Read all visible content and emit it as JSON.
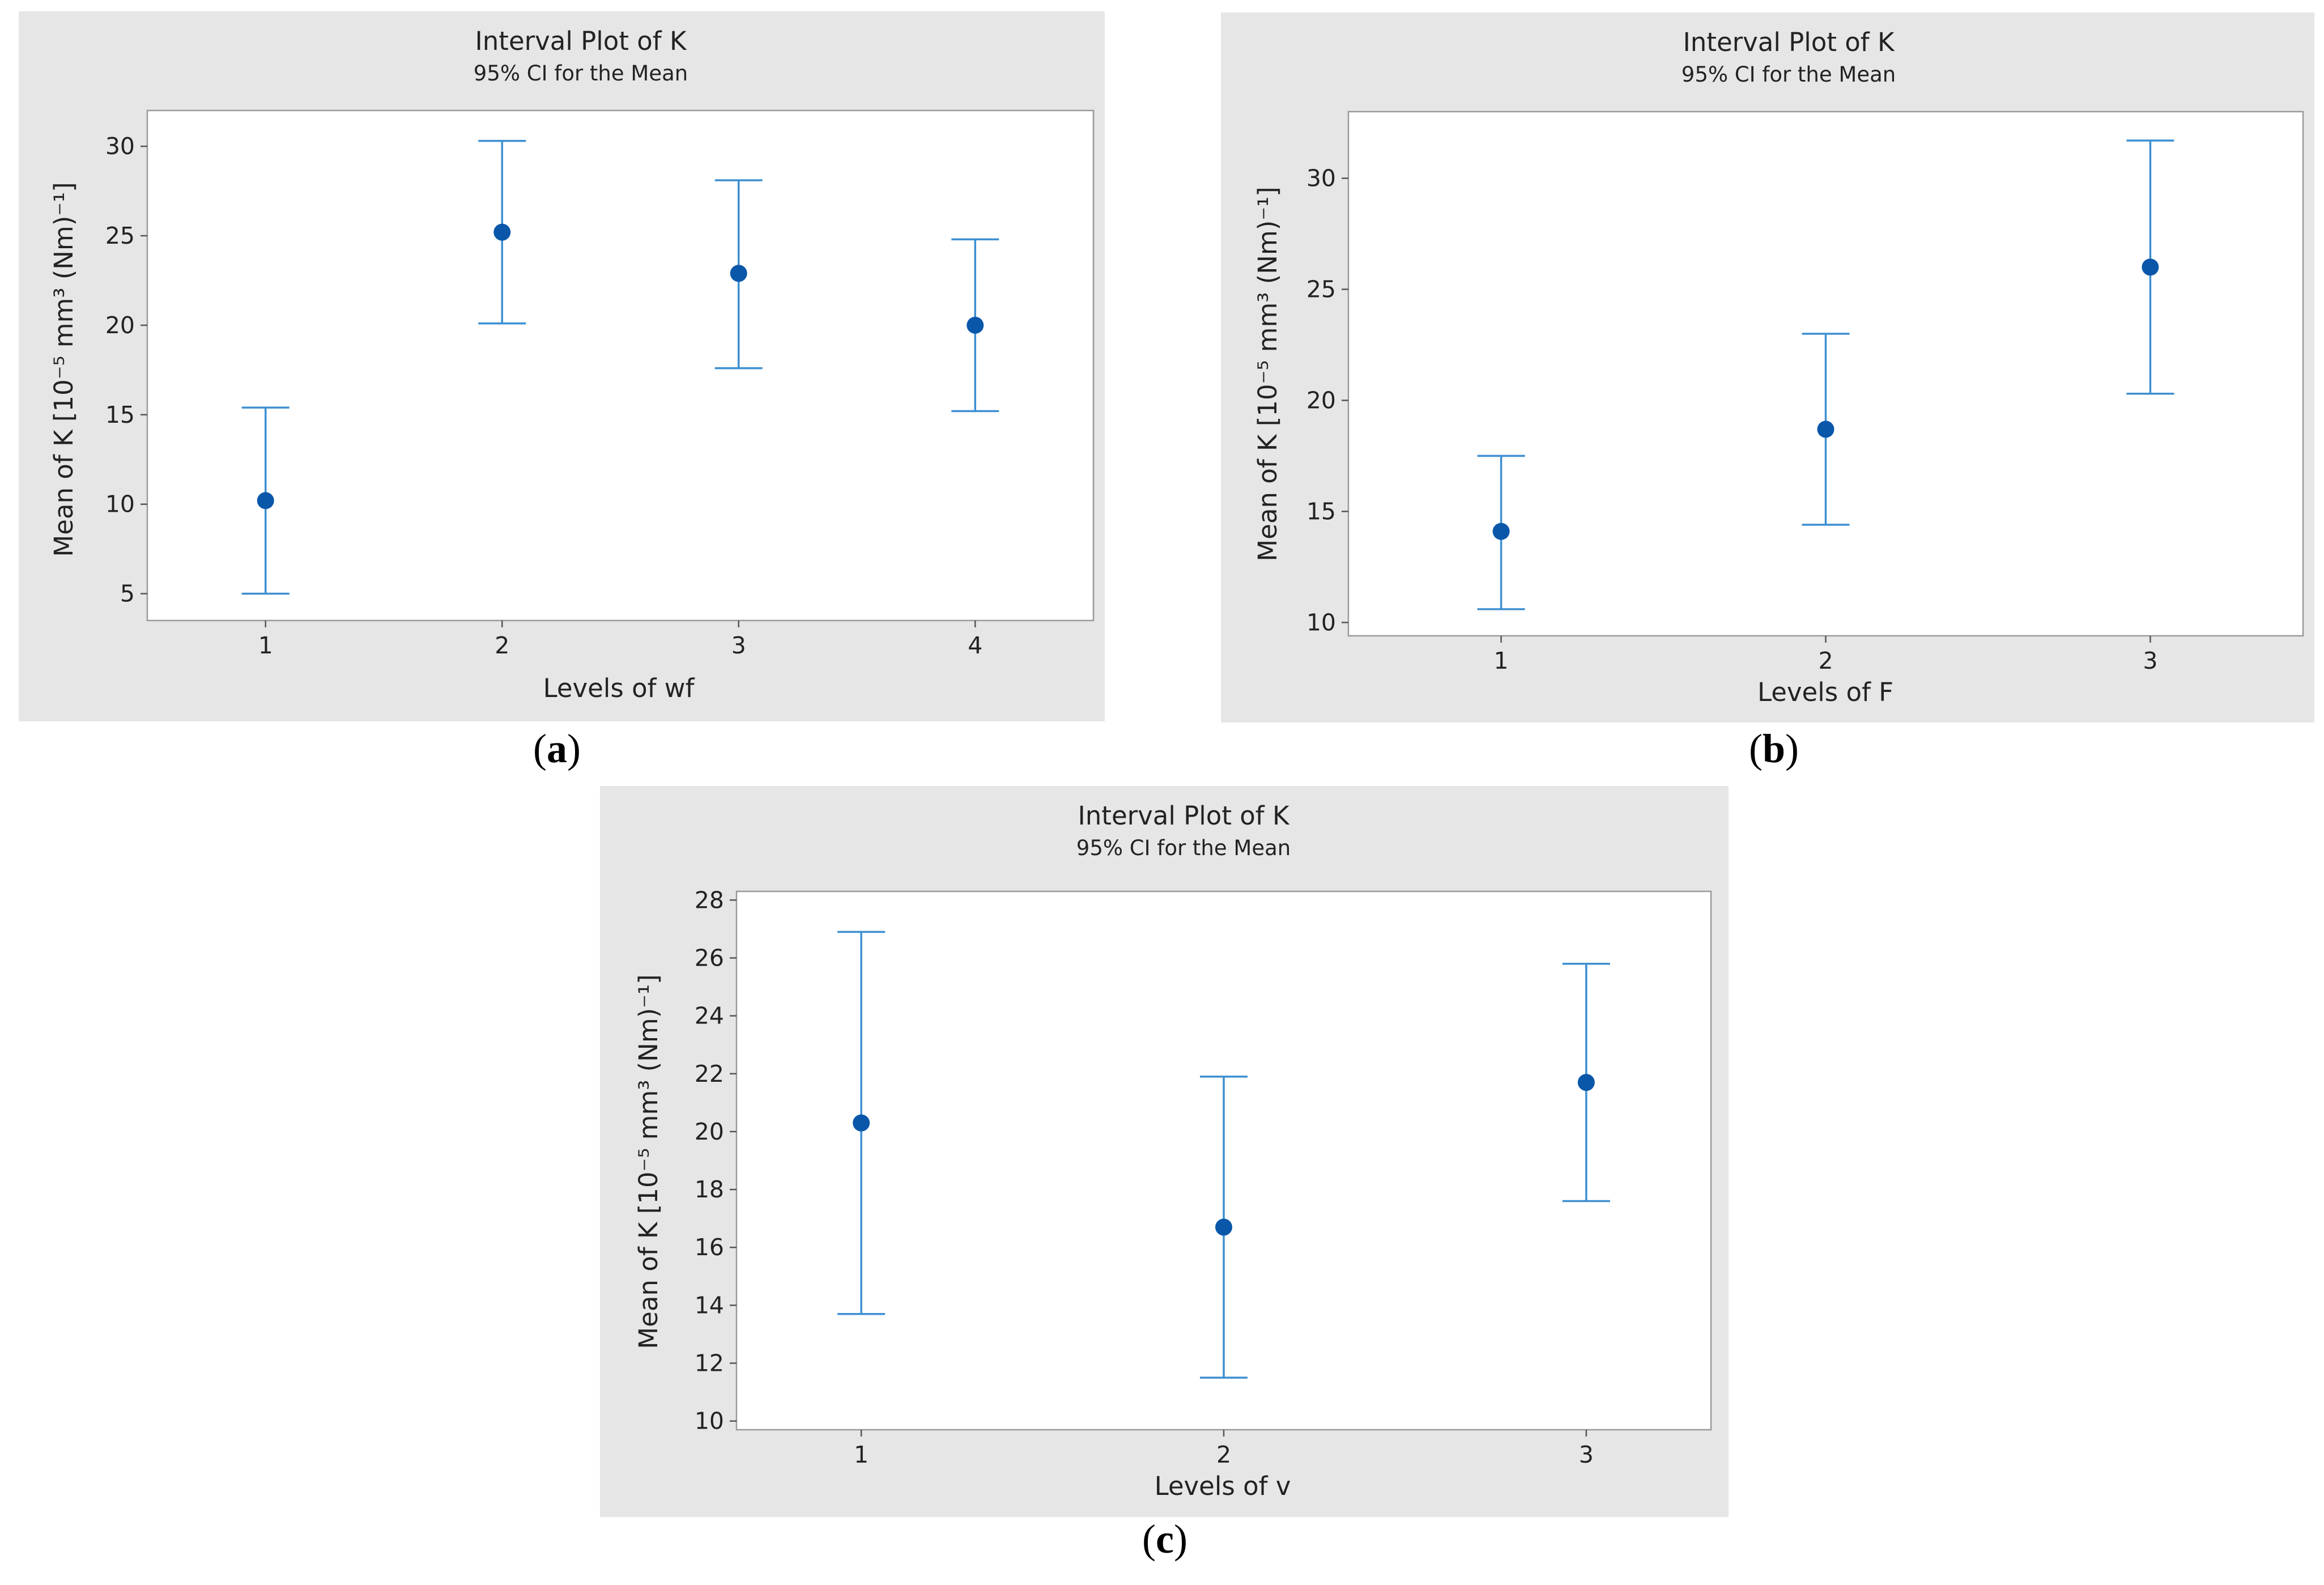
{
  "colors": {
    "background": "#e6e6e6",
    "plot_bg": "#ffffff",
    "interval": "#3d8fd1",
    "mean_point": "#0a57aa",
    "frame": "#9a9a9a"
  },
  "chart_data": [
    {
      "type": "interval",
      "panel": "(a)",
      "panel_letter": "a",
      "title": "Interval Plot of K",
      "subtitle": "95% CI for the Mean",
      "xlabel": "Levels of wf",
      "ylabel": "Mean of K [10⁻⁵ mm³ (Nm)⁻¹]",
      "categories": [
        "1",
        "2",
        "3",
        "4"
      ],
      "means": [
        10.2,
        25.2,
        22.9,
        20.0
      ],
      "lower": [
        5.0,
        20.1,
        17.6,
        15.2
      ],
      "upper": [
        15.4,
        30.3,
        28.1,
        24.8
      ],
      "ylim": [
        3.5,
        32.0
      ],
      "yticks": [
        5,
        10,
        15,
        20,
        25,
        30
      ],
      "ytick_labels": [
        "5",
        "10",
        "15",
        "20",
        "25",
        "30"
      ]
    },
    {
      "type": "interval",
      "panel": "(b)",
      "panel_letter": "b",
      "title": "Interval Plot of K",
      "subtitle": "95% CI for the Mean",
      "xlabel": "Levels of F",
      "ylabel": "Mean of K [10⁻⁵ mm³ (Nm)⁻¹]",
      "categories": [
        "1",
        "2",
        "3"
      ],
      "means": [
        14.1,
        18.7,
        26.0
      ],
      "lower": [
        10.6,
        14.4,
        20.3
      ],
      "upper": [
        17.5,
        23.0,
        31.7
      ],
      "ylim": [
        9.4,
        33.0
      ],
      "yticks": [
        10,
        15,
        20,
        25,
        30
      ],
      "ytick_labels": [
        "10",
        "15",
        "20",
        "25",
        "30"
      ]
    },
    {
      "type": "interval",
      "panel": "(c)",
      "panel_letter": "c",
      "title": "Interval Plot of K",
      "subtitle": "95% CI for the Mean",
      "xlabel": "Levels of v",
      "ylabel": "Mean of K [10⁻⁵ mm³ (Nm)⁻¹]",
      "categories": [
        "1",
        "2",
        "3"
      ],
      "means": [
        20.3,
        16.7,
        21.7
      ],
      "lower": [
        13.7,
        11.5,
        17.6
      ],
      "upper": [
        26.9,
        21.9,
        25.8
      ],
      "ylim": [
        9.7,
        28.3
      ],
      "yticks": [
        10,
        12,
        14,
        16,
        18,
        20,
        22,
        24,
        26,
        28
      ],
      "ytick_labels": [
        "10",
        "12",
        "14",
        "16",
        "18",
        "20",
        "22",
        "24",
        "26",
        "28"
      ]
    }
  ]
}
